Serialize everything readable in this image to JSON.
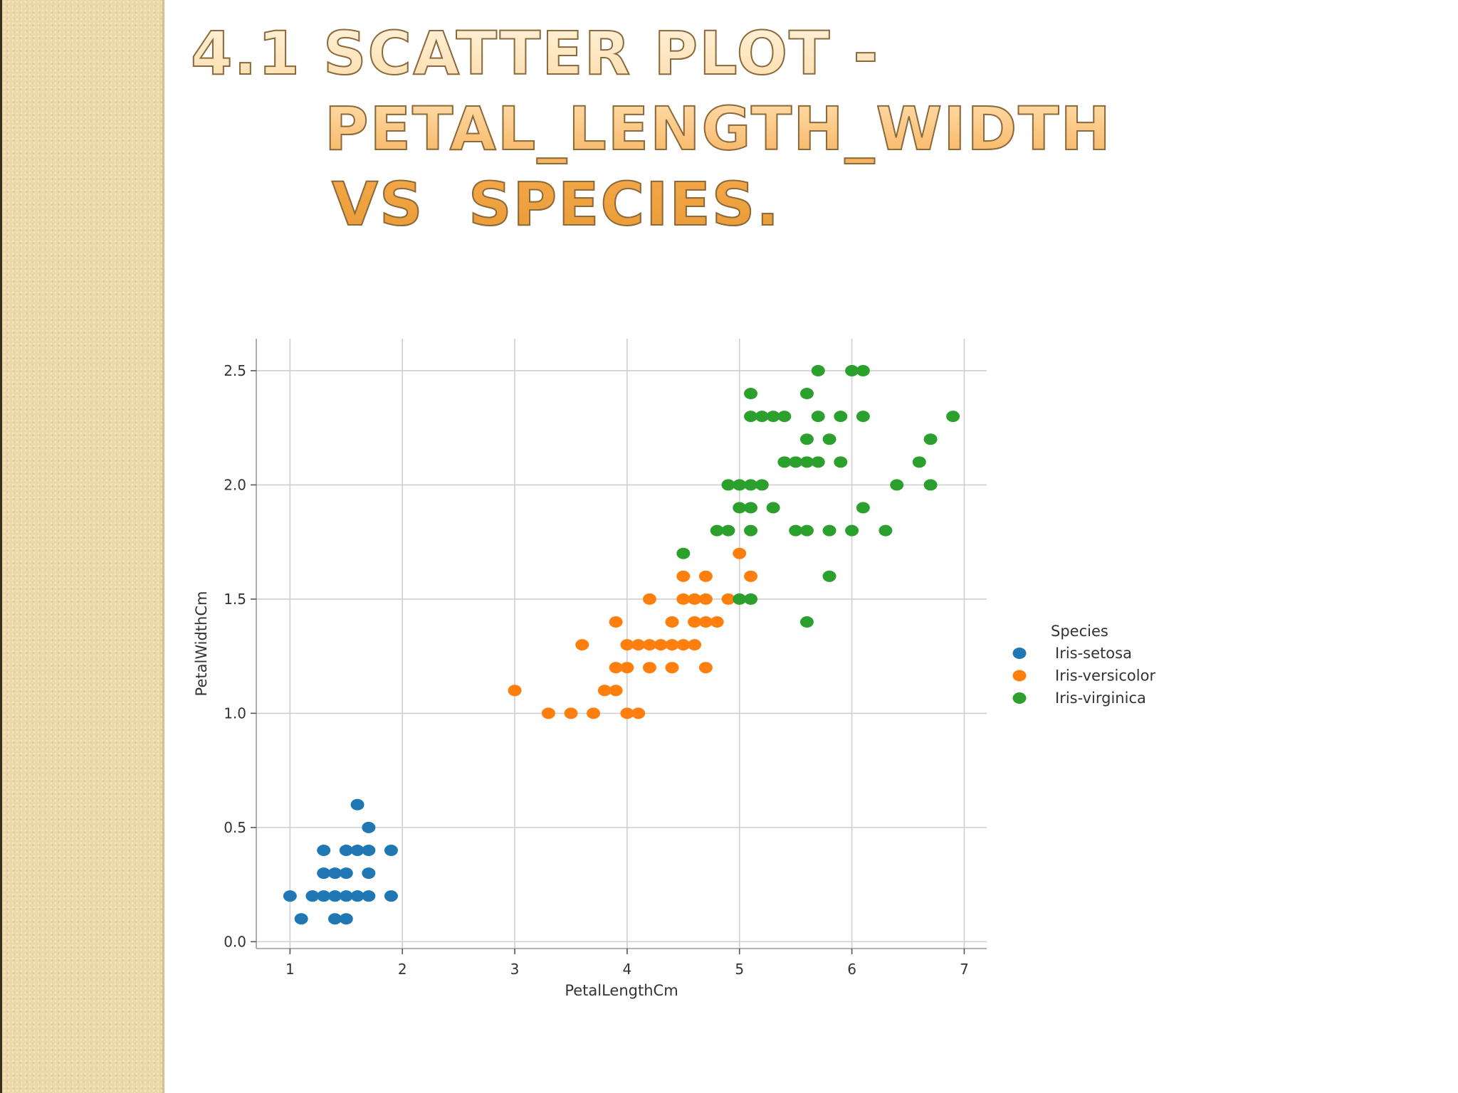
{
  "slide": {
    "title_lines": [
      "4.1 Scatter plot -",
      "petal_length_width",
      "vs  species."
    ]
  },
  "chart_data": {
    "type": "scatter",
    "xlabel": "PetalLengthCm",
    "ylabel": "PetalWidthCm",
    "xlim": [
      0.7,
      7.2
    ],
    "ylim": [
      -0.03,
      2.64
    ],
    "xticks": [
      1,
      2,
      3,
      4,
      5,
      6,
      7
    ],
    "yticks": [
      0.0,
      0.5,
      1.0,
      1.5,
      2.0,
      2.5
    ],
    "xtick_labels": [
      "1",
      "2",
      "3",
      "4",
      "5",
      "6",
      "7"
    ],
    "ytick_labels": [
      "0.0",
      "0.5",
      "1.0",
      "1.5",
      "2.0",
      "2.5"
    ],
    "grid": true,
    "legend": {
      "title": "Species",
      "position": "outside-right"
    },
    "series": [
      {
        "name": "Iris-setosa",
        "color": "#1f77b4",
        "points": [
          [
            1.0,
            0.2
          ],
          [
            1.1,
            0.1
          ],
          [
            1.2,
            0.2
          ],
          [
            1.3,
            0.2
          ],
          [
            1.3,
            0.3
          ],
          [
            1.3,
            0.4
          ],
          [
            1.4,
            0.1
          ],
          [
            1.4,
            0.2
          ],
          [
            1.4,
            0.3
          ],
          [
            1.5,
            0.1
          ],
          [
            1.5,
            0.2
          ],
          [
            1.5,
            0.3
          ],
          [
            1.5,
            0.4
          ],
          [
            1.6,
            0.2
          ],
          [
            1.6,
            0.4
          ],
          [
            1.6,
            0.6
          ],
          [
            1.7,
            0.2
          ],
          [
            1.7,
            0.3
          ],
          [
            1.7,
            0.4
          ],
          [
            1.7,
            0.5
          ],
          [
            1.9,
            0.2
          ],
          [
            1.9,
            0.4
          ]
        ]
      },
      {
        "name": "Iris-versicolor",
        "color": "#ff7f0e",
        "points": [
          [
            3.0,
            1.1
          ],
          [
            3.3,
            1.0
          ],
          [
            3.5,
            1.0
          ],
          [
            3.6,
            1.3
          ],
          [
            3.7,
            1.0
          ],
          [
            3.8,
            1.1
          ],
          [
            3.9,
            1.1
          ],
          [
            3.9,
            1.2
          ],
          [
            3.9,
            1.4
          ],
          [
            4.0,
            1.0
          ],
          [
            4.0,
            1.2
          ],
          [
            4.0,
            1.3
          ],
          [
            4.1,
            1.0
          ],
          [
            4.1,
            1.3
          ],
          [
            4.2,
            1.2
          ],
          [
            4.2,
            1.3
          ],
          [
            4.2,
            1.5
          ],
          [
            4.3,
            1.3
          ],
          [
            4.4,
            1.2
          ],
          [
            4.4,
            1.3
          ],
          [
            4.4,
            1.4
          ],
          [
            4.5,
            1.3
          ],
          [
            4.5,
            1.5
          ],
          [
            4.5,
            1.6
          ],
          [
            4.6,
            1.3
          ],
          [
            4.6,
            1.4
          ],
          [
            4.6,
            1.5
          ],
          [
            4.7,
            1.2
          ],
          [
            4.7,
            1.4
          ],
          [
            4.7,
            1.5
          ],
          [
            4.7,
            1.6
          ],
          [
            4.8,
            1.4
          ],
          [
            4.9,
            1.5
          ],
          [
            5.0,
            1.7
          ],
          [
            5.1,
            1.6
          ]
        ]
      },
      {
        "name": "Iris-virginica",
        "color": "#2ca02c",
        "points": [
          [
            4.5,
            1.7
          ],
          [
            4.8,
            1.8
          ],
          [
            4.9,
            1.8
          ],
          [
            4.9,
            2.0
          ],
          [
            5.0,
            1.5
          ],
          [
            5.0,
            1.9
          ],
          [
            5.0,
            2.0
          ],
          [
            5.1,
            1.5
          ],
          [
            5.1,
            1.8
          ],
          [
            5.1,
            1.9
          ],
          [
            5.1,
            2.0
          ],
          [
            5.1,
            2.3
          ],
          [
            5.1,
            2.4
          ],
          [
            5.2,
            2.0
          ],
          [
            5.2,
            2.3
          ],
          [
            5.3,
            1.9
          ],
          [
            5.3,
            2.3
          ],
          [
            5.4,
            2.1
          ],
          [
            5.4,
            2.3
          ],
          [
            5.5,
            1.8
          ],
          [
            5.5,
            2.1
          ],
          [
            5.6,
            1.4
          ],
          [
            5.6,
            1.8
          ],
          [
            5.6,
            2.1
          ],
          [
            5.6,
            2.2
          ],
          [
            5.6,
            2.4
          ],
          [
            5.7,
            2.1
          ],
          [
            5.7,
            2.3
          ],
          [
            5.7,
            2.5
          ],
          [
            5.8,
            1.6
          ],
          [
            5.8,
            1.8
          ],
          [
            5.8,
            2.2
          ],
          [
            5.9,
            2.1
          ],
          [
            5.9,
            2.3
          ],
          [
            6.0,
            1.8
          ],
          [
            6.0,
            2.5
          ],
          [
            6.1,
            1.9
          ],
          [
            6.1,
            2.3
          ],
          [
            6.1,
            2.5
          ],
          [
            6.3,
            1.8
          ],
          [
            6.4,
            2.0
          ],
          [
            6.6,
            2.1
          ],
          [
            6.7,
            2.0
          ],
          [
            6.7,
            2.2
          ],
          [
            6.9,
            2.3
          ]
        ]
      }
    ]
  }
}
